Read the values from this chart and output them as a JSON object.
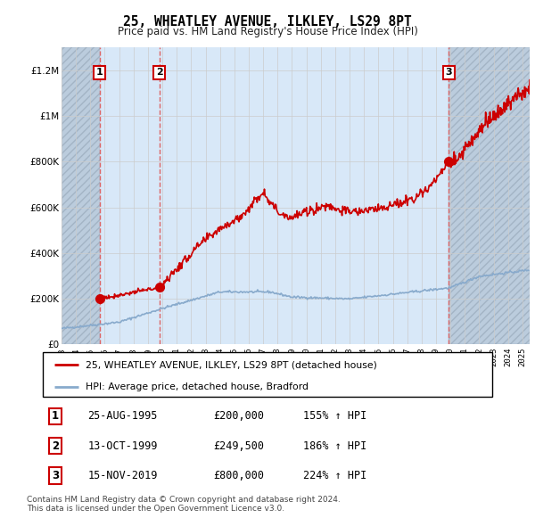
{
  "title": "25, WHEATLEY AVENUE, ILKLEY, LS29 8PT",
  "subtitle": "Price paid vs. HM Land Registry's House Price Index (HPI)",
  "legend_label_red": "25, WHEATLEY AVENUE, ILKLEY, LS29 8PT (detached house)",
  "legend_label_blue": "HPI: Average price, detached house, Bradford",
  "transactions": [
    {
      "num": 1,
      "date_label": "25-AUG-1995",
      "date_x": 1995.64,
      "price": 200000,
      "price_str": "£200,000",
      "hpi_pct": "155% ↑ HPI"
    },
    {
      "num": 2,
      "date_label": "13-OCT-1999",
      "date_x": 1999.78,
      "price": 249500,
      "price_str": "£249,500",
      "hpi_pct": "186% ↑ HPI"
    },
    {
      "num": 3,
      "date_label": "15-NOV-2019",
      "date_x": 2019.88,
      "price": 800000,
      "price_str": "£800,000",
      "hpi_pct": "224% ↑ HPI"
    }
  ],
  "footer_line1": "Contains HM Land Registry data © Crown copyright and database right 2024.",
  "footer_line2": "This data is licensed under the Open Government Licence v3.0.",
  "ylim": [
    0,
    1300000
  ],
  "xlim": [
    1993,
    2025.5
  ],
  "ytick_vals": [
    0,
    200000,
    400000,
    600000,
    800000,
    1000000,
    1200000
  ],
  "ytick_labels": [
    "£0",
    "£200K",
    "£400K",
    "£600K",
    "£800K",
    "£1M",
    "£1.2M"
  ],
  "bg_color": "#ddeeff",
  "hatch_bg_color": "#bbccdd",
  "grid_color": "#bbbbcc",
  "red_color": "#cc0000",
  "blue_color": "#88aacc",
  "dashed_red": "#dd4444"
}
